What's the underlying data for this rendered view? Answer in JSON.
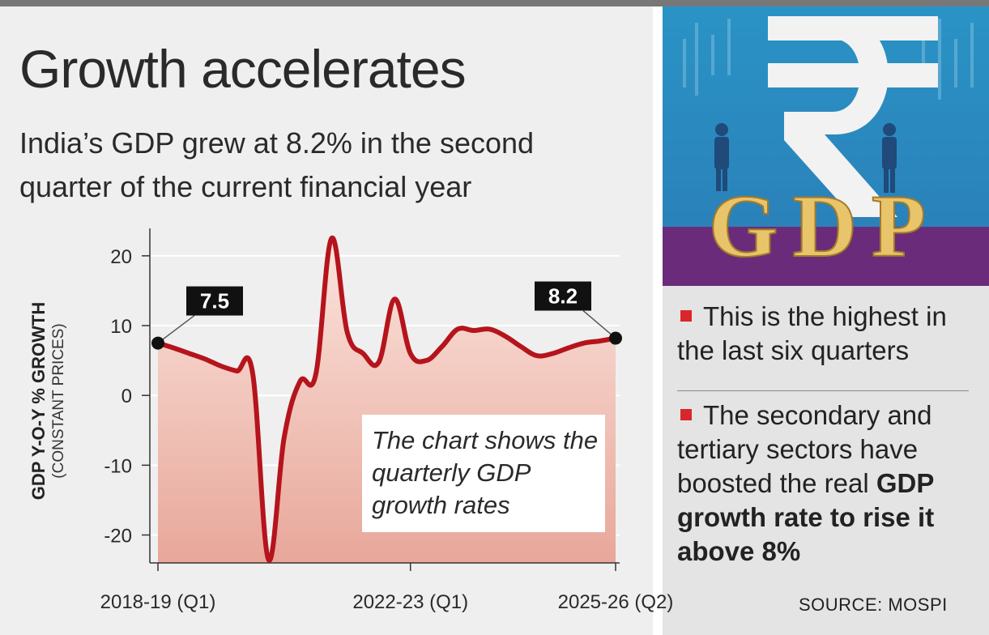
{
  "header": {
    "title": "Growth accelerates",
    "subtitle": "India’s GDP grew at 8.2% in the second quarter of the current financial year"
  },
  "chart_data": {
    "type": "line",
    "title": "Growth accelerates",
    "ylabel": "GDP Y-O-Y % GROWTH",
    "ylabel_sub": "(CONSTANT PRICES)",
    "xlabel": "",
    "ylim": [
      -24,
      23
    ],
    "yticks": [
      20,
      10,
      0,
      -10,
      -20
    ],
    "xtick_labels": [
      "2018-19 (Q1)",
      "2022-23 (Q1)",
      "2025-26 (Q2)"
    ],
    "xtick_positions": [
      0,
      16,
      29
    ],
    "x": [
      0,
      1,
      2,
      3,
      4,
      5,
      6,
      7,
      8,
      9,
      10,
      11,
      12,
      13,
      14,
      15,
      16,
      17,
      18,
      19,
      20,
      21,
      22,
      23,
      24,
      25,
      26,
      27,
      28,
      29
    ],
    "values": [
      7.5,
      6.8,
      6.0,
      5.2,
      4.2,
      3.5,
      3.2,
      -23.5,
      -6.0,
      2.0,
      3.0,
      22.5,
      9.0,
      6.0,
      4.8,
      13.8,
      6.0,
      5.0,
      7.0,
      9.5,
      9.3,
      9.5,
      8.5,
      7.0,
      5.7,
      6.0,
      6.8,
      7.5,
      7.8,
      8.2
    ],
    "series_color": "#b5141c",
    "annotations": [
      {
        "label": "7.5",
        "x": 0,
        "value": 7.5
      },
      {
        "label": "8.2",
        "x": 29,
        "value": 8.2
      }
    ],
    "note": "The chart shows the quarterly GDP growth rates"
  },
  "side": {
    "hero_text": "GDP",
    "bullets": [
      {
        "text": "This is the highest in the last six quarters"
      },
      {
        "text_plain": "The secondary and tertiary sectors have boosted the real ",
        "text_bold": "GDP growth rate to rise it above 8%"
      }
    ],
    "source": "SOURCE: MOSPI"
  },
  "colors": {
    "accent_red": "#b5141c",
    "bullet_red": "#d9262b",
    "hero_blue": "#2a86bd",
    "hero_purple": "#6a2c7a",
    "gold": "#e8c46a"
  }
}
